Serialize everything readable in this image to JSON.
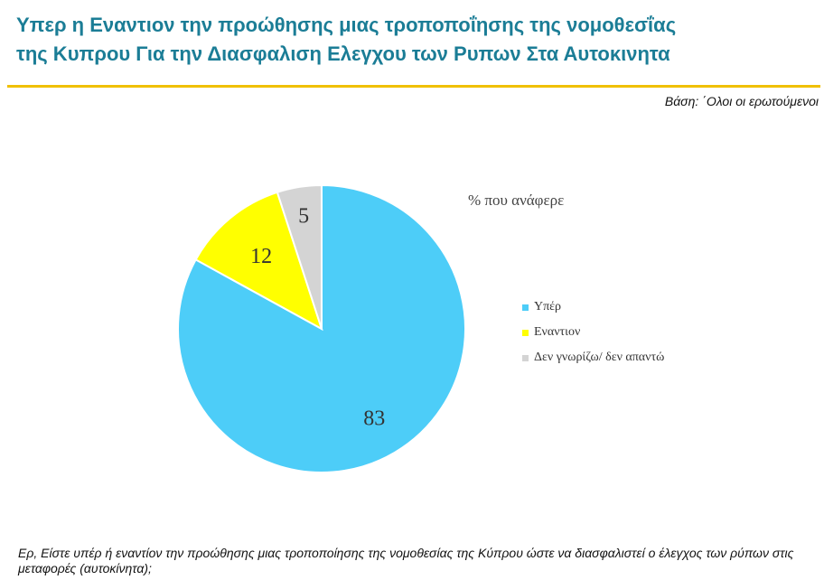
{
  "header": {
    "title_line1": "Υπερ η Εναντιον την προώθησης μιας τροποποΐησης της νομοθεσΐας",
    "title_line2": "της Κυπρου Για την Διασφαλιση Ελεγχου των Ρυπων Στα Αυτοκινητα",
    "base": "Βάση: ΄Ολοι οι ερωτούμενοι"
  },
  "chart_data": {
    "type": "pie",
    "legend_title": "% που ανάφερε",
    "legend_position": "right",
    "slices": [
      {
        "label": "Υπέρ",
        "value": 83,
        "color": "#4dcdf8"
      },
      {
        "label": "Εναντιον",
        "value": 12,
        "color": "#ffff00"
      },
      {
        "label": "Δεν γνωρίζω/  δεν απαντώ",
        "value": 5,
        "color": "#d4d4d4"
      }
    ]
  },
  "footer": {
    "question": "Ερ, Είστε υπέρ ή εναντίον την προώθησης μιας τροποποίησης της νομοθεσίας της Κύπρου ώστε να διασφαλιστεί ο έλεγχος των ρύπων στις μεταφορές (αυτοκίνητα);"
  }
}
